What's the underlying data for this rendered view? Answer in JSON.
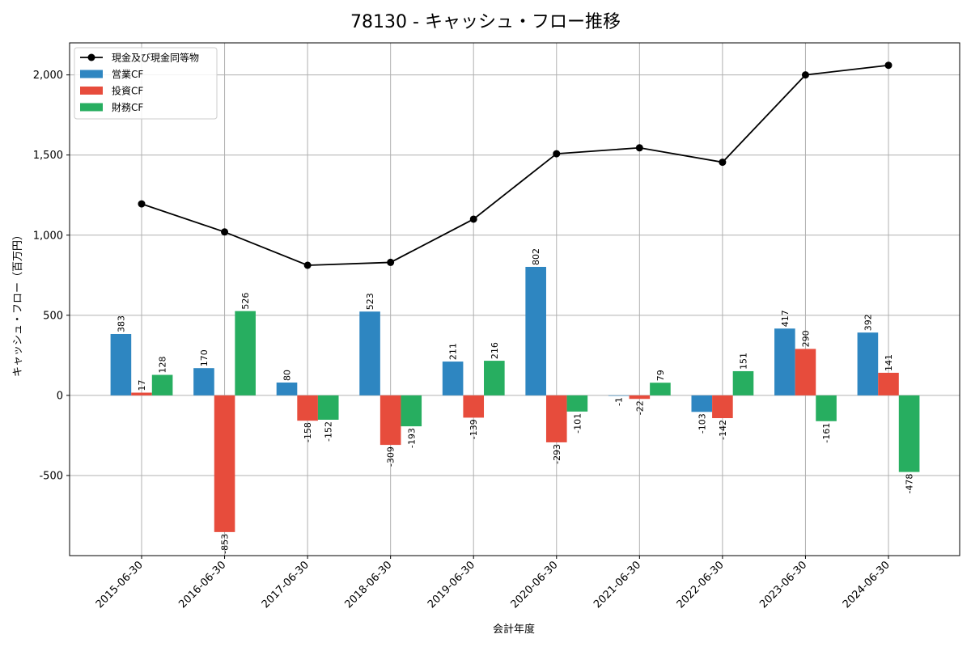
{
  "chart_data": {
    "type": "bar",
    "title": "78130 - キャッシュ・フロー推移",
    "xlabel": "会計年度",
    "ylabel": "キャッシュ・フロー（百万円）",
    "categories": [
      "2015-06-30",
      "2016-06-30",
      "2017-06-30",
      "2018-06-30",
      "2019-06-30",
      "2020-06-30",
      "2021-06-30",
      "2022-06-30",
      "2023-06-30",
      "2024-06-30"
    ],
    "series": [
      {
        "name": "営業CF",
        "kind": "bar",
        "color": "#2e86c1",
        "values": [
          383,
          170,
          80,
          523,
          211,
          802,
          -1,
          -103,
          417,
          392
        ]
      },
      {
        "name": "投資CF",
        "kind": "bar",
        "color": "#e74c3c",
        "values": [
          17,
          -853,
          -158,
          -309,
          -139,
          -293,
          -22,
          -142,
          290,
          141
        ]
      },
      {
        "name": "財務CF",
        "kind": "bar",
        "color": "#27ae60",
        "values": [
          128,
          526,
          -152,
          -193,
          216,
          -101,
          79,
          151,
          -161,
          -478
        ]
      },
      {
        "name": "現金及び現金同等物",
        "kind": "line",
        "color": "#000000",
        "values": [
          1195,
          1020,
          812,
          830,
          1100,
          1508,
          1545,
          1455,
          2000,
          2060
        ]
      }
    ],
    "yticks": [
      -500,
      0,
      500,
      1000,
      1500,
      2000
    ],
    "ytick_labels": [
      "-500",
      "0",
      "500",
      "1,000",
      "1,500",
      "2,000"
    ],
    "ylim": [
      -1000,
      2200
    ],
    "grid": true,
    "legend_position": "top-left"
  }
}
